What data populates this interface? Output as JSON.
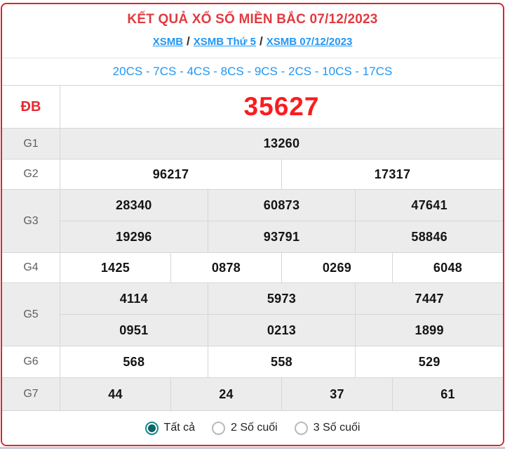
{
  "header": {
    "title": "KẾT QUẢ XỔ SỐ MIỀN BẮC 07/12/2023",
    "separator": "/",
    "breadcrumb": [
      {
        "label": "XSMB"
      },
      {
        "label": "XSMB Thứ 5"
      },
      {
        "label": "XSMB 07/12/2023"
      }
    ],
    "stats_line": "20CS - 7CS - 4CS - 8CS - 9CS - 2CS - 10CS - 17CS"
  },
  "results": {
    "rows": [
      {
        "label": "ĐB",
        "groups": [
          [
            "35627"
          ]
        ]
      },
      {
        "label": "G1",
        "groups": [
          [
            "13260"
          ]
        ]
      },
      {
        "label": "G2",
        "groups": [
          [
            "96217",
            "17317"
          ]
        ]
      },
      {
        "label": "G3",
        "groups": [
          [
            "28340",
            "60873",
            "47641"
          ],
          [
            "19296",
            "93791",
            "58846"
          ]
        ]
      },
      {
        "label": "G4",
        "groups": [
          [
            "1425",
            "0878",
            "0269",
            "6048"
          ]
        ]
      },
      {
        "label": "G5",
        "groups": [
          [
            "4114",
            "5973",
            "7447"
          ],
          [
            "0951",
            "0213",
            "1899"
          ]
        ]
      },
      {
        "label": "G6",
        "groups": [
          [
            "568",
            "558",
            "529"
          ]
        ]
      },
      {
        "label": "G7",
        "groups": [
          [
            "44",
            "24",
            "37",
            "61"
          ]
        ]
      }
    ]
  },
  "filters": {
    "options": [
      {
        "label": "Tất cả",
        "selected": true
      },
      {
        "label": "2 Số cuối",
        "selected": false
      },
      {
        "label": "3 Số cuối",
        "selected": false
      }
    ]
  },
  "colors": {
    "card_border": "#dc2530",
    "title_red": "#e23a40",
    "jackpot_red": "#f91d20",
    "link_blue": "#2196f3",
    "row_gray": "#ececec",
    "cell_border": "#d6d6d6",
    "radio_teal": "#0e8a90"
  }
}
